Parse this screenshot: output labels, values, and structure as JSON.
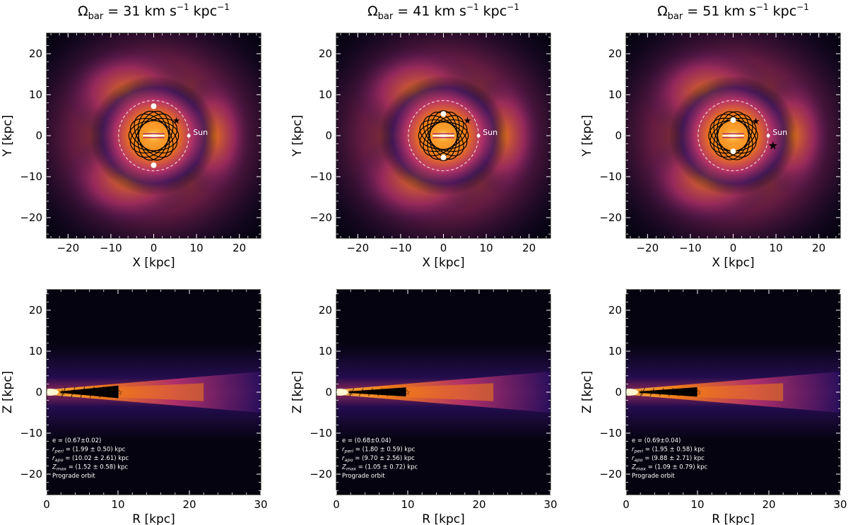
{
  "chart_data": [
    {
      "type": "heatmap",
      "title_prefix": "Ω",
      "title_sub": "bar",
      "title_value": "= 31 km s",
      "title_exp1": "−1",
      "title_unit": " kpc",
      "title_exp2": "−1",
      "top": {
        "xlabel": "X [kpc]",
        "ylabel": "Y [kpc]",
        "xlim": [
          -25,
          25
        ],
        "ylim": [
          -25,
          25
        ],
        "xticks": [
          -20,
          -10,
          0,
          10,
          20
        ],
        "yticks": [
          -20,
          -10,
          0,
          10,
          20
        ],
        "sun_label": "Sun",
        "sun": [
          8.2,
          0
        ],
        "bar_angle_deg": 0,
        "orbit": {
          "a": 5.8,
          "b": 3.5,
          "n": 7,
          "stars": [
            [
              5.3,
              3.8
            ]
          ]
        },
        "dots": [
          [
            0,
            7.2
          ],
          [
            0,
            -7.2
          ]
        ]
      },
      "bottom": {
        "xlabel": "R [kpc]",
        "ylabel": "Z [kpc]",
        "xlim": [
          0,
          30
        ],
        "ylim": [
          -25,
          25
        ],
        "xticks": [
          0,
          10,
          20,
          30
        ],
        "yticks": [
          -20,
          -10,
          0,
          10,
          20
        ],
        "orbit_r": [
          2.0,
          10.0
        ],
        "orbit_z": 1.5,
        "stats": {
          "e": "e = (0.67±0.02)",
          "rperi": "(1.99 ± 0.50) kpc",
          "rapo": "(10.02 ± 2.61) kpc",
          "zmax": "(1.52 ± 0.58) kpc",
          "orbit": "Prograde orbit"
        }
      }
    },
    {
      "type": "heatmap",
      "title_prefix": "Ω",
      "title_sub": "bar",
      "title_value": "= 41 km s",
      "title_exp1": "−1",
      "title_unit": " kpc",
      "title_exp2": "−1",
      "top": {
        "xlabel": "X [kpc]",
        "ylabel": "Y [kpc]",
        "xlim": [
          -25,
          25
        ],
        "ylim": [
          -25,
          25
        ],
        "xticks": [
          -20,
          -10,
          0,
          10,
          20
        ],
        "yticks": [
          -20,
          -10,
          0,
          10,
          20
        ],
        "sun_label": "Sun",
        "sun": [
          8.2,
          0
        ],
        "bar_angle_deg": 0,
        "orbit": {
          "a": 5.8,
          "b": 3.2,
          "n": 8,
          "stars": [
            [
              5.6,
              3.8
            ]
          ]
        },
        "dots": [
          [
            0,
            5.3
          ],
          [
            0,
            -5.3
          ]
        ]
      },
      "bottom": {
        "xlabel": "R [kpc]",
        "ylabel": "Z [kpc]",
        "xlim": [
          0,
          30
        ],
        "ylim": [
          -25,
          25
        ],
        "xticks": [
          0,
          10,
          20,
          30
        ],
        "yticks": [
          -20,
          -10,
          0,
          10,
          20
        ],
        "orbit_r": [
          1.8,
          9.7
        ],
        "orbit_z": 1.05,
        "stats": {
          "e": "e = (0.68±0.04)",
          "rperi": "(1.80 ± 0.59) kpc",
          "rapo": "(9.70 ± 2.56) kpc",
          "zmax": "(1.05 ± 0.72) kpc",
          "orbit": "Prograde orbit"
        }
      }
    },
    {
      "type": "heatmap",
      "title_prefix": "Ω",
      "title_sub": "bar",
      "title_value": "= 51 km s",
      "title_exp1": "−1",
      "title_unit": " kpc",
      "title_exp2": "−1",
      "top": {
        "xlabel": "X [kpc]",
        "ylabel": "Y [kpc]",
        "xlim": [
          -25,
          25
        ],
        "ylim": [
          -25,
          25
        ],
        "xticks": [
          -20,
          -10,
          0,
          10,
          20
        ],
        "yticks": [
          -20,
          -10,
          0,
          10,
          20
        ],
        "sun_label": "Sun",
        "sun": [
          8.2,
          0
        ],
        "bar_angle_deg": 0,
        "orbit": {
          "a": 5.7,
          "b": 3.6,
          "n": 7,
          "stars": [
            [
              5.3,
              3.6
            ],
            [
              9.3,
              -2.3
            ]
          ]
        },
        "dots": [
          [
            0,
            3.8
          ],
          [
            0,
            -3.8
          ]
        ]
      },
      "bottom": {
        "xlabel": "R [kpc]",
        "ylabel": "Z [kpc]",
        "xlim": [
          0,
          30
        ],
        "ylim": [
          -25,
          25
        ],
        "xticks": [
          0,
          10,
          20,
          30
        ],
        "yticks": [
          -20,
          -10,
          0,
          10,
          20
        ],
        "orbit_r": [
          1.95,
          9.9
        ],
        "orbit_z": 1.1,
        "stats": {
          "e": "e = (0.69±0.04)",
          "rperi": "(1.95 ± 0.58) kpc",
          "rapo": "(9.88 ± 2.71) kpc",
          "zmax": "(1.09 ± 0.79) kpc",
          "orbit": "Prograde orbit"
        }
      }
    }
  ],
  "colors": {
    "background": "#05030f",
    "dark": "#2a0f5c",
    "mid": "#b4306c",
    "orange": "#f57d15",
    "bright": "#fcb93f",
    "core": "#fff5d0"
  }
}
